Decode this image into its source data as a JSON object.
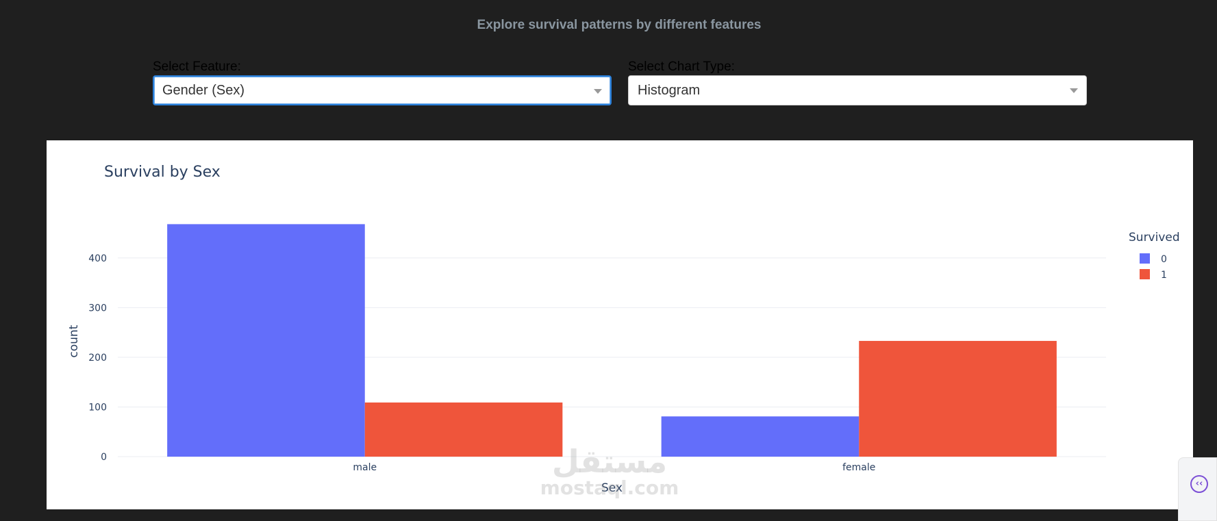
{
  "header": {
    "subtitle": "Explore survival patterns by different features"
  },
  "controls": {
    "feature": {
      "label": "Select Feature:",
      "value": "Gender (Sex)"
    },
    "chart_type": {
      "label": "Select Chart Type:",
      "value": "Histogram"
    }
  },
  "watermark": {
    "arabic": "مستقل",
    "latin": "mostaql.com"
  },
  "side_tab": {
    "icon": "double-chevron-left-icon",
    "glyph": "‹‹"
  },
  "colors": {
    "series0": "#636efa",
    "series1": "#ef553b",
    "grid": "#ebedf2",
    "text": "#2a3f5f"
  },
  "chart_data": {
    "type": "bar",
    "title": "Survival by Sex",
    "xlabel": "Sex",
    "ylabel": "count",
    "categories": [
      "male",
      "female"
    ],
    "legend_title": "Survived",
    "legend_position": "right",
    "series": [
      {
        "name": "0",
        "values": [
          468,
          81
        ],
        "color": "#636efa"
      },
      {
        "name": "1",
        "values": [
          109,
          233
        ],
        "color": "#ef553b"
      }
    ],
    "yticks": [
      0,
      100,
      200,
      300,
      400
    ],
    "ylim": [
      0,
      492
    ],
    "grid": true
  }
}
